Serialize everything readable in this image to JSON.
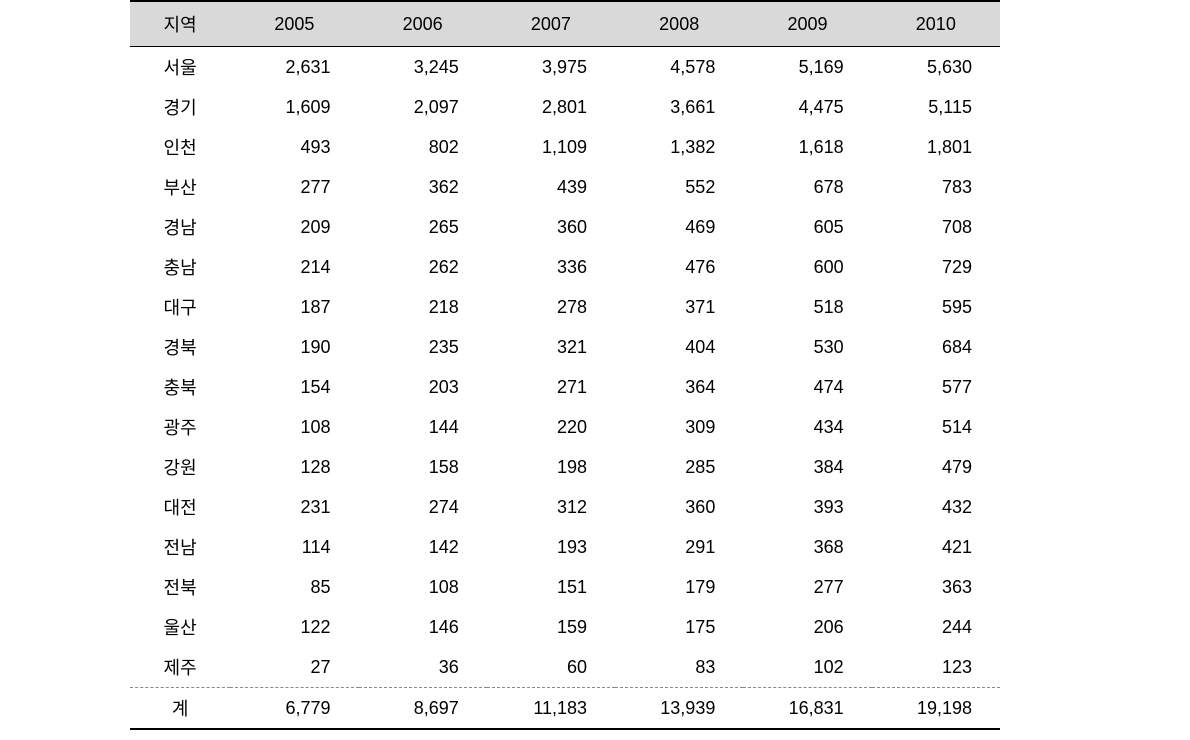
{
  "table": {
    "header": {
      "region_label": "지역",
      "years": [
        "2005",
        "2006",
        "2007",
        "2008",
        "2009",
        "2010"
      ]
    },
    "rows": [
      {
        "region": "서울",
        "values": [
          "2,631",
          "3,245",
          "3,975",
          "4,578",
          "5,169",
          "5,630"
        ]
      },
      {
        "region": "경기",
        "values": [
          "1,609",
          "2,097",
          "2,801",
          "3,661",
          "4,475",
          "5,115"
        ]
      },
      {
        "region": "인천",
        "values": [
          "493",
          "802",
          "1,109",
          "1,382",
          "1,618",
          "1,801"
        ]
      },
      {
        "region": "부산",
        "values": [
          "277",
          "362",
          "439",
          "552",
          "678",
          "783"
        ]
      },
      {
        "region": "경남",
        "values": [
          "209",
          "265",
          "360",
          "469",
          "605",
          "708"
        ]
      },
      {
        "region": "충남",
        "values": [
          "214",
          "262",
          "336",
          "476",
          "600",
          "729"
        ]
      },
      {
        "region": "대구",
        "values": [
          "187",
          "218",
          "278",
          "371",
          "518",
          "595"
        ]
      },
      {
        "region": "경북",
        "values": [
          "190",
          "235",
          "321",
          "404",
          "530",
          "684"
        ]
      },
      {
        "region": "충북",
        "values": [
          "154",
          "203",
          "271",
          "364",
          "474",
          "577"
        ]
      },
      {
        "region": "광주",
        "values": [
          "108",
          "144",
          "220",
          "309",
          "434",
          "514"
        ]
      },
      {
        "region": "강원",
        "values": [
          "128",
          "158",
          "198",
          "285",
          "384",
          "479"
        ]
      },
      {
        "region": "대전",
        "values": [
          "231",
          "274",
          "312",
          "360",
          "393",
          "432"
        ]
      },
      {
        "region": "전남",
        "values": [
          "114",
          "142",
          "193",
          "291",
          "368",
          "421"
        ]
      },
      {
        "region": "전북",
        "values": [
          "85",
          "108",
          "151",
          "179",
          "277",
          "363"
        ]
      },
      {
        "region": "울산",
        "values": [
          "122",
          "146",
          "159",
          "175",
          "206",
          "244"
        ]
      },
      {
        "region": "제주",
        "values": [
          "27",
          "36",
          "60",
          "83",
          "102",
          "123"
        ]
      }
    ],
    "total": {
      "label": "계",
      "values": [
        "6,779",
        "8,697",
        "11,183",
        "13,939",
        "16,831",
        "19,198"
      ]
    },
    "style": {
      "header_bg": "#d9d9d9",
      "border_color": "#000000",
      "dashed_color": "#888888",
      "text_color": "#000000",
      "font_size": 18,
      "background_color": "#ffffff"
    }
  }
}
